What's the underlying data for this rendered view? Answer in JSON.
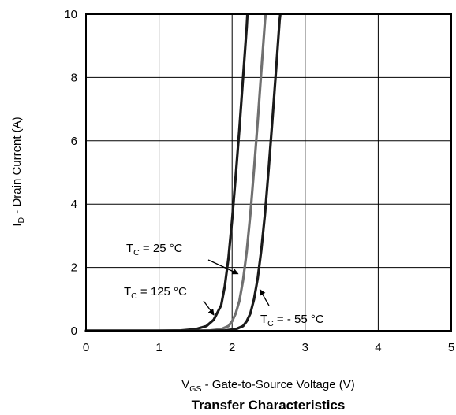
{
  "chart_data": {
    "type": "line",
    "title": "Transfer Characteristics",
    "xlabel": {
      "main": "V",
      "sub": "GS",
      "rest": " - Gate-to-Source Voltage (V)"
    },
    "ylabel": {
      "main": "I",
      "sub": "D",
      "rest": " - Drain Current (A)"
    },
    "xlim": [
      0,
      5
    ],
    "ylim": [
      0,
      10
    ],
    "xticks": [
      "0",
      "1",
      "2",
      "3",
      "4",
      "5"
    ],
    "yticks": [
      "0",
      "2",
      "4",
      "6",
      "8",
      "10"
    ],
    "grid": true,
    "series": [
      {
        "name": "T_C = 125 °C",
        "color": "#1a1a1a",
        "points": [
          [
            0,
            0
          ],
          [
            1.0,
            0
          ],
          [
            1.3,
            0.01
          ],
          [
            1.5,
            0.05
          ],
          [
            1.65,
            0.15
          ],
          [
            1.75,
            0.35
          ],
          [
            1.85,
            0.8
          ],
          [
            1.9,
            1.4
          ],
          [
            1.95,
            2.3
          ],
          [
            2.0,
            3.5
          ],
          [
            2.05,
            4.9
          ],
          [
            2.1,
            6.4
          ],
          [
            2.15,
            8.0
          ],
          [
            2.2,
            9.6
          ],
          [
            2.21,
            10
          ]
        ]
      },
      {
        "name": "T_C = 25 °C",
        "color": "#707070",
        "points": [
          [
            0,
            0
          ],
          [
            1.5,
            0
          ],
          [
            1.7,
            0.01
          ],
          [
            1.85,
            0.05
          ],
          [
            1.95,
            0.15
          ],
          [
            2.0,
            0.3
          ],
          [
            2.05,
            0.55
          ],
          [
            2.1,
            0.95
          ],
          [
            2.15,
            1.6
          ],
          [
            2.2,
            2.5
          ],
          [
            2.25,
            3.7
          ],
          [
            2.3,
            5.1
          ],
          [
            2.35,
            6.6
          ],
          [
            2.4,
            8.2
          ],
          [
            2.45,
            9.8
          ],
          [
            2.46,
            10
          ]
        ]
      },
      {
        "name": "T_C = - 55 °C",
        "color": "#1a1a1a",
        "points": [
          [
            0,
            0
          ],
          [
            1.7,
            0
          ],
          [
            1.9,
            0.01
          ],
          [
            2.05,
            0.05
          ],
          [
            2.15,
            0.15
          ],
          [
            2.2,
            0.3
          ],
          [
            2.25,
            0.55
          ],
          [
            2.3,
            1.0
          ],
          [
            2.35,
            1.65
          ],
          [
            2.4,
            2.55
          ],
          [
            2.45,
            3.7
          ],
          [
            2.5,
            5.1
          ],
          [
            2.55,
            6.6
          ],
          [
            2.6,
            8.2
          ],
          [
            2.65,
            9.8
          ],
          [
            2.66,
            10
          ]
        ]
      }
    ],
    "annotations": [
      {
        "main": "T",
        "sub": "C",
        "rest": " = 25 °C",
        "target": [
          2.08,
          1.8
        ]
      },
      {
        "main": "T",
        "sub": "C",
        "rest": " = 125 °C",
        "target": [
          1.75,
          0.5
        ]
      },
      {
        "main": "T",
        "sub": "C",
        "rest": " = - 55 °C",
        "target": [
          2.38,
          1.3
        ]
      }
    ]
  }
}
